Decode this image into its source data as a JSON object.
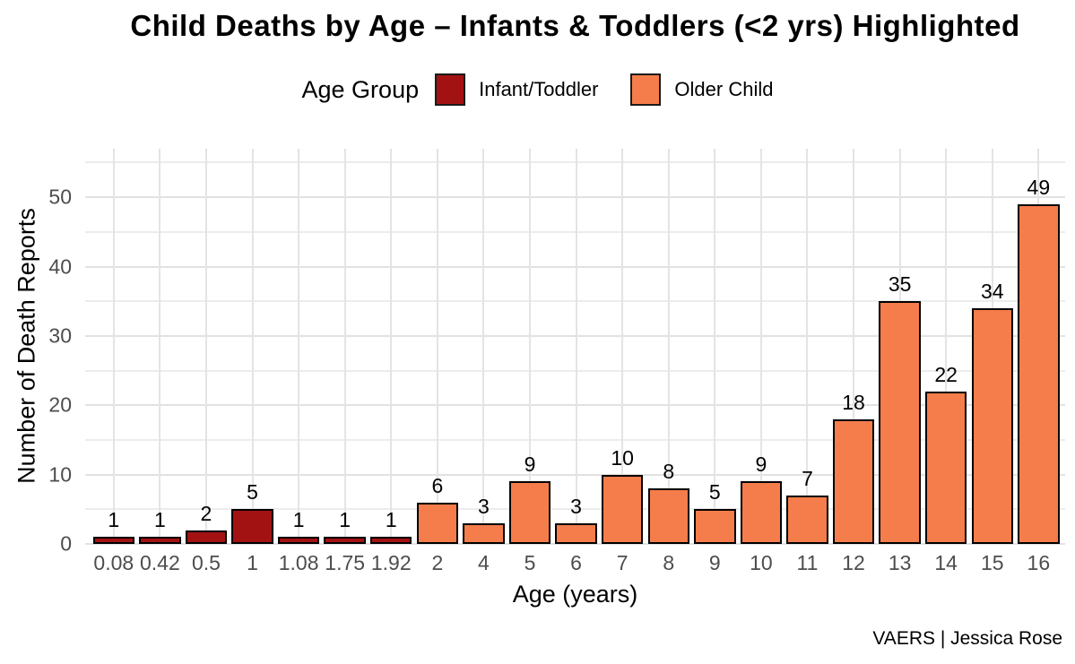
{
  "title": "Child Deaths by Age – Infants & Toddlers (<2 yrs) Highlighted",
  "legend": {
    "title": "Age Group",
    "items": [
      {
        "label": "Infant/Toddler",
        "color": "#A31212"
      },
      {
        "label": "Older Child",
        "color": "#F57D4B"
      }
    ]
  },
  "chart_data": {
    "type": "bar",
    "title": "Child Deaths by Age – Infants & Toddlers (<2 yrs) Highlighted",
    "xlabel": "Age (years)",
    "ylabel": "Number of Death Reports",
    "categories": [
      "0.08",
      "0.42",
      "0.5",
      "1",
      "1.08",
      "1.75",
      "1.92",
      "2",
      "4",
      "5",
      "6",
      "7",
      "8",
      "9",
      "10",
      "11",
      "12",
      "13",
      "14",
      "15",
      "16"
    ],
    "values": [
      1,
      1,
      2,
      5,
      1,
      1,
      1,
      6,
      3,
      9,
      3,
      10,
      8,
      5,
      9,
      7,
      18,
      35,
      22,
      34,
      49
    ],
    "groups": [
      "Infant/Toddler",
      "Infant/Toddler",
      "Infant/Toddler",
      "Infant/Toddler",
      "Infant/Toddler",
      "Infant/Toddler",
      "Infant/Toddler",
      "Older Child",
      "Older Child",
      "Older Child",
      "Older Child",
      "Older Child",
      "Older Child",
      "Older Child",
      "Older Child",
      "Older Child",
      "Older Child",
      "Older Child",
      "Older Child",
      "Older Child",
      "Older Child"
    ],
    "bar_labels": true,
    "ylim": [
      0,
      57
    ],
    "yticks": [
      0,
      10,
      20,
      30,
      40,
      50
    ],
    "yticks_minor": [
      5,
      15,
      25,
      35,
      45,
      55
    ],
    "grid": "on",
    "legend_position": "top"
  },
  "caption": "VAERS | Jessica Rose",
  "colors": {
    "grid_major": "#E2E2E2",
    "grid_minor": "#ECECEC",
    "bar_border": "#000000",
    "tick_text": "#4D4D4D",
    "background": "#FFFFFF"
  }
}
